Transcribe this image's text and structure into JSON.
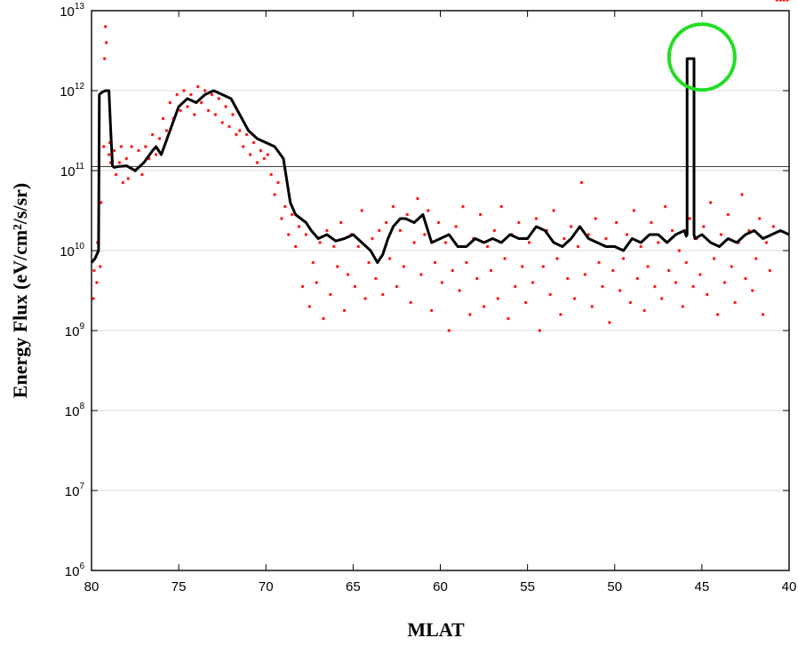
{
  "chart_data": {
    "type": "scatter",
    "xlabel": "MLAT",
    "ylabel": "Energy Flux (eV/cm²/s/sr)",
    "x_reversed": true,
    "xlim": [
      80,
      40
    ],
    "ylim_log10": [
      6,
      13
    ],
    "y_scale": "log",
    "x_ticks": [
      "80",
      "75",
      "70",
      "65",
      "60",
      "55",
      "50",
      "45",
      "40"
    ],
    "y_ticks": [
      {
        "base": "10",
        "exp": "6"
      },
      {
        "base": "10",
        "exp": "7"
      },
      {
        "base": "10",
        "exp": "8"
      },
      {
        "base": "10",
        "exp": "9"
      },
      {
        "base": "10",
        "exp": "10"
      },
      {
        "base": "10",
        "exp": "11"
      },
      {
        "base": "10",
        "exp": "12"
      },
      {
        "base": "10",
        "exp": "13"
      }
    ],
    "reference_line_log10": 11.05,
    "annotation": {
      "type": "circle",
      "x": 45.0,
      "log10_y": 12.42,
      "color": "#22dd22"
    },
    "colors": {
      "line": "#000000",
      "points": "#ff2020",
      "circle": "#22dd22",
      "refline": "#000000"
    },
    "series": [
      {
        "role": "smoothed-line",
        "x": [
          80.0,
          79.8,
          79.6,
          79.55,
          79.4,
          79.2,
          79.0,
          78.9,
          78.8,
          78.7,
          78.5,
          78.0,
          77.5,
          77.0,
          76.5,
          76.3,
          76.0,
          75.5,
          75.0,
          74.5,
          74.0,
          73.5,
          73.0,
          72.5,
          72.0,
          71.5,
          71.0,
          70.5,
          70.0,
          69.5,
          69.0,
          68.6,
          68.3,
          68.0,
          67.7,
          67.4,
          67.0,
          66.5,
          66.0,
          65.5,
          65.0,
          64.5,
          64.0,
          63.6,
          63.3,
          63.0,
          62.7,
          62.3,
          62.0,
          61.5,
          61.0,
          60.5,
          60.0,
          59.5,
          59.0,
          58.5,
          58.0,
          57.5,
          57.0,
          56.5,
          56.0,
          55.5,
          55.0,
          54.5,
          54.0,
          53.5,
          53.0,
          52.5,
          52.0,
          51.5,
          51.0,
          50.5,
          50.0,
          49.5,
          49.0,
          48.5,
          48.0,
          47.5,
          47.0,
          46.5,
          46.0,
          45.9,
          45.85,
          45.85,
          45.45,
          45.45,
          45.4,
          45.0,
          44.5,
          44.0,
          43.5,
          43.0,
          42.5,
          42.0,
          41.5,
          41.0,
          40.5,
          40.0
        ],
        "log10_y": [
          9.85,
          9.9,
          10.0,
          11.95,
          11.98,
          12.0,
          12.0,
          11.5,
          11.06,
          11.04,
          11.05,
          11.06,
          11.0,
          11.1,
          11.25,
          11.3,
          11.2,
          11.5,
          11.8,
          11.9,
          11.85,
          11.95,
          12.0,
          11.95,
          11.9,
          11.7,
          11.5,
          11.4,
          11.35,
          11.3,
          11.15,
          10.6,
          10.45,
          10.4,
          10.35,
          10.25,
          10.15,
          10.2,
          10.12,
          10.15,
          10.2,
          10.1,
          10.0,
          9.85,
          9.95,
          10.15,
          10.3,
          10.4,
          10.4,
          10.35,
          10.45,
          10.1,
          10.15,
          10.2,
          10.05,
          10.05,
          10.15,
          10.1,
          10.15,
          10.1,
          10.2,
          10.15,
          10.15,
          10.3,
          10.25,
          10.1,
          10.05,
          10.15,
          10.3,
          10.15,
          10.1,
          10.05,
          10.05,
          10.0,
          10.15,
          10.1,
          10.2,
          10.2,
          10.1,
          10.2,
          10.25,
          10.18,
          10.2,
          12.4,
          12.4,
          10.2,
          10.15,
          10.2,
          10.1,
          10.05,
          10.15,
          10.1,
          10.2,
          10.25,
          10.15,
          10.2,
          10.25,
          10.2
        ]
      },
      {
        "role": "measurements",
        "x": [
          79.9,
          79.85,
          79.7,
          79.65,
          79.5,
          79.45,
          79.3,
          79.25,
          79.2,
          79.15,
          79.0,
          78.95,
          78.9,
          78.7,
          78.6,
          78.4,
          78.3,
          78.2,
          78.0,
          77.9,
          77.7,
          77.5,
          77.3,
          77.1,
          76.9,
          76.7,
          76.5,
          76.3,
          76.1,
          75.9,
          75.7,
          75.5,
          75.3,
          75.1,
          74.9,
          74.7,
          74.5,
          74.3,
          74.1,
          73.9,
          73.7,
          73.5,
          73.3,
          73.1,
          72.9,
          72.7,
          72.5,
          72.3,
          72.1,
          71.9,
          71.7,
          71.5,
          71.3,
          71.1,
          70.9,
          70.7,
          70.5,
          70.3,
          70.1,
          69.9,
          69.7,
          69.5,
          69.3,
          69.1,
          68.9,
          68.7,
          68.5,
          68.3,
          68.1,
          67.9,
          67.7,
          67.5,
          67.3,
          67.1,
          66.9,
          66.7,
          66.5,
          66.3,
          66.1,
          65.9,
          65.7,
          65.5,
          65.3,
          65.1,
          64.9,
          64.7,
          64.5,
          64.3,
          64.1,
          63.9,
          63.7,
          63.5,
          63.3,
          63.1,
          62.9,
          62.7,
          62.5,
          62.3,
          62.1,
          61.9,
          61.7,
          61.5,
          61.3,
          61.1,
          60.9,
          60.7,
          60.5,
          60.3,
          60.1,
          59.9,
          59.7,
          59.5,
          59.3,
          59.1,
          58.9,
          58.7,
          58.5,
          58.3,
          58.1,
          57.9,
          57.7,
          57.5,
          57.3,
          57.1,
          56.9,
          56.7,
          56.5,
          56.3,
          56.1,
          55.9,
          55.7,
          55.5,
          55.3,
          55.1,
          54.9,
          54.7,
          54.5,
          54.3,
          54.1,
          53.9,
          53.7,
          53.5,
          53.3,
          53.1,
          52.9,
          52.7,
          52.5,
          52.3,
          52.1,
          51.9,
          51.7,
          51.5,
          51.3,
          51.1,
          50.9,
          50.7,
          50.5,
          50.3,
          50.1,
          49.9,
          49.7,
          49.5,
          49.3,
          49.1,
          48.9,
          48.7,
          48.5,
          48.3,
          48.1,
          47.9,
          47.7,
          47.5,
          47.3,
          47.1,
          46.9,
          46.7,
          46.5,
          46.3,
          46.1,
          45.9,
          45.7,
          45.5,
          45.3,
          45.1,
          44.9,
          44.7,
          44.5,
          44.3,
          44.1,
          43.9,
          43.7,
          43.5,
          43.3,
          43.1,
          42.9,
          42.7,
          42.5,
          42.3,
          42.1,
          41.9,
          41.7,
          41.5,
          41.3,
          41.1,
          40.9,
          40.7,
          40.5,
          40.3,
          40.1
        ],
        "log10_y": [
          9.4,
          9.75,
          9.6,
          10.1,
          9.8,
          10.6,
          11.3,
          12.4,
          12.8,
          12.6,
          11.2,
          11.35,
          11.1,
          11.25,
          10.95,
          11.1,
          11.3,
          10.85,
          11.15,
          10.9,
          11.3,
          11.0,
          11.25,
          10.95,
          11.3,
          11.15,
          11.45,
          11.2,
          11.4,
          11.65,
          11.5,
          11.85,
          11.65,
          11.95,
          11.75,
          12.0,
          11.8,
          11.95,
          11.7,
          12.05,
          11.85,
          12.0,
          11.75,
          11.95,
          11.7,
          11.9,
          11.6,
          11.8,
          11.55,
          11.7,
          11.45,
          11.5,
          11.3,
          11.45,
          11.2,
          11.35,
          11.1,
          11.25,
          11.15,
          11.2,
          10.95,
          10.7,
          10.85,
          10.4,
          10.55,
          10.2,
          10.45,
          10.05,
          10.3,
          9.55,
          10.2,
          9.3,
          9.85,
          9.6,
          10.1,
          9.15,
          10.25,
          9.45,
          10.05,
          9.8,
          10.35,
          9.25,
          9.7,
          10.2,
          9.55,
          10.05,
          10.5,
          9.4,
          9.85,
          10.15,
          9.65,
          10.25,
          9.45,
          10.35,
          9.9,
          10.55,
          9.55,
          10.25,
          9.8,
          10.45,
          9.35,
          10.1,
          10.65,
          9.7,
          10.2,
          10.5,
          9.25,
          9.85,
          10.35,
          9.6,
          10.1,
          9.0,
          9.75,
          10.3,
          9.5,
          10.55,
          9.85,
          9.2,
          10.15,
          9.65,
          10.45,
          9.3,
          10.05,
          9.75,
          10.25,
          9.4,
          10.55,
          9.9,
          9.15,
          10.2,
          9.55,
          10.35,
          9.8,
          9.35,
          10.1,
          9.6,
          10.4,
          9.0,
          9.8,
          10.25,
          9.45,
          10.5,
          9.9,
          9.2,
          10.15,
          9.65,
          10.3,
          9.4,
          10.05,
          10.85,
          9.7,
          10.2,
          9.3,
          10.4,
          9.85,
          9.55,
          10.15,
          9.1,
          9.75,
          10.35,
          9.5,
          9.9,
          10.2,
          9.35,
          10.5,
          9.65,
          10.05,
          9.25,
          9.8,
          10.35,
          9.55,
          10.1,
          9.4,
          10.55,
          9.75,
          10.25,
          9.6,
          10.0,
          9.3,
          9.85,
          10.4,
          9.55,
          10.15,
          9.7,
          10.3,
          9.45,
          10.6,
          9.9,
          9.2,
          10.2,
          9.6,
          10.45,
          9.8,
          9.35,
          10.1,
          10.7,
          9.65,
          10.25,
          9.5,
          9.9,
          10.4,
          9.2,
          10.1,
          9.75,
          10.3
        ]
      }
    ]
  }
}
